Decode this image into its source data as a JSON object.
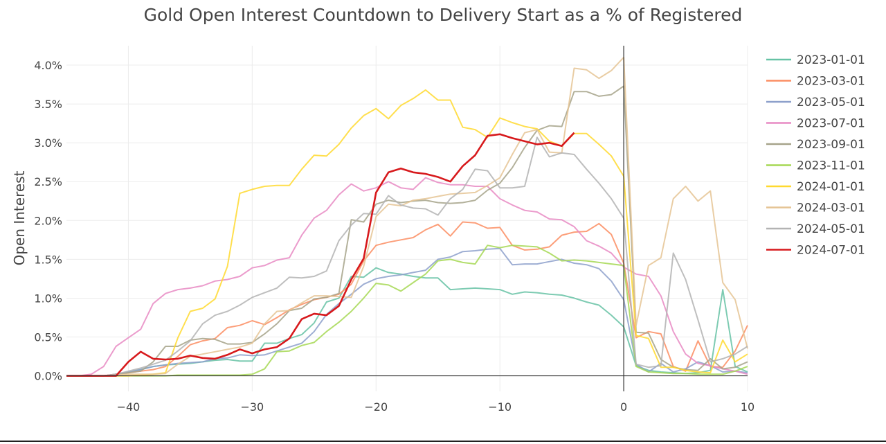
{
  "chart_data": {
    "type": "line",
    "title": "Gold Open Interest Countdown to Delivery Start as a % of Registered",
    "xlabel": "",
    "ylabel": "Open Interest",
    "xlim": [
      -45,
      10
    ],
    "ylim": [
      -0.002,
      0.0425
    ],
    "x_ticks": [
      -40,
      -30,
      -20,
      -10,
      0,
      10
    ],
    "x_tick_labels": [
      "−40",
      "−30",
      "−20",
      "−10",
      "0",
      "10"
    ],
    "y_ticks": [
      0,
      0.005,
      0.01,
      0.015,
      0.02,
      0.025,
      0.03,
      0.035,
      0.04
    ],
    "y_tick_labels": [
      "0.0%",
      "0.5%",
      "1.0%",
      "1.5%",
      "2.0%",
      "2.5%",
      "3.0%",
      "3.5%",
      "4.0%"
    ],
    "grid": true,
    "legend_position": "right",
    "series": [
      {
        "name": "2023-01-01",
        "color": "#66c2a5",
        "x": [
          -45,
          -44,
          -43,
          -42,
          -41,
          -40,
          -39,
          -38,
          -37,
          -36,
          -35,
          -34,
          -33,
          -32,
          -31,
          -30,
          -29,
          -28,
          -27,
          -26,
          -25,
          -24,
          -23,
          -22,
          -21,
          -20,
          -19,
          -18,
          -17,
          -16,
          -15,
          -14,
          -13,
          -12,
          -11,
          -10,
          -9,
          -8,
          -7,
          -6,
          -5,
          -4,
          -3,
          -2,
          -1,
          0,
          1,
          2,
          3,
          4,
          5,
          6,
          7,
          8,
          9,
          10
        ],
        "y": [
          0,
          0,
          0,
          0,
          0.0002,
          0.0005,
          0.0008,
          0.0012,
          0.0014,
          0.0015,
          0.0016,
          0.0018,
          0.002,
          0.0021,
          0.0019,
          0.0019,
          0.0042,
          0.0042,
          0.0048,
          0.0053,
          0.0068,
          0.0095,
          0.01,
          0.0128,
          0.0127,
          0.0139,
          0.0133,
          0.0131,
          0.0128,
          0.0126,
          0.0126,
          0.0111,
          0.0112,
          0.0113,
          0.0112,
          0.0111,
          0.0105,
          0.0108,
          0.0107,
          0.0105,
          0.0104,
          0.01,
          0.0095,
          0.0091,
          0.0078,
          0.0063,
          0.0013,
          0.0007,
          0.0005,
          0.0004,
          0.0003,
          0.0004,
          0.0007,
          0.0111,
          0.0012,
          0.0005
        ]
      },
      {
        "name": "2023-03-01",
        "color": "#fc8d62",
        "x": [
          -45,
          -44,
          -43,
          -42,
          -41,
          -40,
          -39,
          -38,
          -37,
          -36,
          -35,
          -34,
          -33,
          -32,
          -31,
          -30,
          -29,
          -28,
          -27,
          -26,
          -25,
          -24,
          -23,
          -22,
          -21,
          -20,
          -19,
          -18,
          -17,
          -16,
          -15,
          -14,
          -13,
          -12,
          -11,
          -10,
          -9,
          -8,
          -7,
          -6,
          -5,
          -4,
          -3,
          -2,
          -1,
          0,
          1,
          2,
          3,
          4,
          5,
          6,
          7,
          8,
          9,
          10
        ],
        "y": [
          0,
          0,
          0,
          0,
          0.0002,
          0.0004,
          0.0006,
          0.0008,
          0.0012,
          0.0025,
          0.004,
          0.0045,
          0.0048,
          0.0062,
          0.0065,
          0.0071,
          0.0066,
          0.0075,
          0.0085,
          0.0092,
          0.0098,
          0.0101,
          0.0105,
          0.0118,
          0.0148,
          0.0168,
          0.0172,
          0.0175,
          0.0178,
          0.0188,
          0.0195,
          0.018,
          0.0198,
          0.0197,
          0.019,
          0.0191,
          0.0168,
          0.0162,
          0.0163,
          0.0166,
          0.0181,
          0.0185,
          0.0186,
          0.0196,
          0.0182,
          0.0145,
          0.0049,
          0.0057,
          0.0054,
          0.0012,
          0.0006,
          0.0045,
          0.0012,
          0.0011,
          0.0032,
          0.0065
        ]
      },
      {
        "name": "2023-05-01",
        "color": "#8da0cb",
        "x": [
          -45,
          -44,
          -43,
          -42,
          -41,
          -40,
          -39,
          -38,
          -37,
          -36,
          -35,
          -34,
          -33,
          -32,
          -31,
          -30,
          -29,
          -28,
          -27,
          -26,
          -25,
          -24,
          -23,
          -22,
          -21,
          -20,
          -19,
          -18,
          -17,
          -16,
          -15,
          -14,
          -13,
          -12,
          -11,
          -10,
          -9,
          -8,
          -7,
          -6,
          -5,
          -4,
          -3,
          -2,
          -1,
          0,
          1,
          2,
          3,
          4,
          5,
          6,
          7,
          8,
          9,
          10
        ],
        "y": [
          0,
          0,
          0,
          0,
          0.0002,
          0.0005,
          0.0008,
          0.0012,
          0.0014,
          0.0016,
          0.0017,
          0.0018,
          0.0022,
          0.0023,
          0.0027,
          0.0026,
          0.0027,
          0.0032,
          0.0037,
          0.0042,
          0.0057,
          0.0079,
          0.0093,
          0.0105,
          0.0118,
          0.0125,
          0.0128,
          0.013,
          0.0133,
          0.0136,
          0.015,
          0.0153,
          0.016,
          0.0161,
          0.0163,
          0.0164,
          0.0143,
          0.0144,
          0.0144,
          0.0147,
          0.015,
          0.0145,
          0.0143,
          0.0138,
          0.0122,
          0.0098,
          0.0015,
          0.0005,
          0.0016,
          0.0005,
          0.0009,
          0.0018,
          0.0013,
          0.0005,
          0.0006,
          0.0004
        ]
      },
      {
        "name": "2023-07-01",
        "color": "#e78ac3",
        "x": [
          -45,
          -44,
          -43,
          -42,
          -41,
          -40,
          -39,
          -38,
          -37,
          -36,
          -35,
          -34,
          -33,
          -32,
          -31,
          -30,
          -29,
          -28,
          -27,
          -26,
          -25,
          -24,
          -23,
          -22,
          -21,
          -20,
          -19,
          -18,
          -17,
          -16,
          -15,
          -14,
          -13,
          -12,
          -11,
          -10,
          -9,
          -8,
          -7,
          -6,
          -5,
          -4,
          -3,
          -2,
          -1,
          0,
          1,
          2,
          3,
          4,
          5,
          6,
          7,
          8,
          9,
          10
        ],
        "y": [
          0,
          0,
          0.0002,
          0.0012,
          0.0038,
          0.0049,
          0.006,
          0.0093,
          0.0106,
          0.0111,
          0.0113,
          0.0116,
          0.0122,
          0.0124,
          0.0128,
          0.0139,
          0.0142,
          0.0149,
          0.0152,
          0.0181,
          0.0203,
          0.0213,
          0.0233,
          0.0247,
          0.0238,
          0.0242,
          0.025,
          0.0242,
          0.024,
          0.0255,
          0.0249,
          0.0246,
          0.0246,
          0.0244,
          0.0244,
          0.0228,
          0.022,
          0.0213,
          0.0211,
          0.0202,
          0.0201,
          0.0192,
          0.0174,
          0.0167,
          0.0158,
          0.014,
          0.0131,
          0.0128,
          0.0103,
          0.0057,
          0.0028,
          0.0016,
          0.0013,
          0.0009,
          0.0006,
          0.0002
        ]
      },
      {
        "name": "2023-09-01",
        "color": "#a6a38a",
        "x": [
          -45,
          -44,
          -43,
          -42,
          -41,
          -40,
          -39,
          -38,
          -37,
          -36,
          -35,
          -34,
          -33,
          -32,
          -31,
          -30,
          -29,
          -28,
          -27,
          -26,
          -25,
          -24,
          -23,
          -22,
          -21,
          -20,
          -19,
          -18,
          -17,
          -16,
          -15,
          -14,
          -13,
          -12,
          -11,
          -10,
          -9,
          -8,
          -7,
          -6,
          -5,
          -4,
          -3,
          -2,
          -1,
          0,
          1,
          2,
          3,
          4,
          5,
          6,
          7,
          8,
          9,
          10
        ],
        "y": [
          0,
          0,
          0,
          0,
          0.0002,
          0.0004,
          0.0006,
          0.0018,
          0.0038,
          0.0038,
          0.0046,
          0.0048,
          0.0047,
          0.0041,
          0.0041,
          0.0043,
          0.0054,
          0.0067,
          0.0084,
          0.0087,
          0.0099,
          0.0101,
          0.0106,
          0.0201,
          0.0198,
          0.0221,
          0.0226,
          0.0223,
          0.0225,
          0.0226,
          0.0223,
          0.0222,
          0.0223,
          0.0226,
          0.0239,
          0.0248,
          0.0268,
          0.0294,
          0.0316,
          0.0322,
          0.0321,
          0.0366,
          0.0366,
          0.036,
          0.0362,
          0.0373,
          0.0056,
          0.0055,
          0.0021,
          0.0011,
          0.0008,
          0.0007,
          0.0022,
          0.0009,
          0.0011,
          0.0018
        ]
      },
      {
        "name": "2023-11-01",
        "color": "#a6d854",
        "x": [
          -45,
          -44,
          -43,
          -42,
          -41,
          -40,
          -39,
          -38,
          -37,
          -36,
          -35,
          -34,
          -33,
          -32,
          -31,
          -30,
          -29,
          -28,
          -27,
          -26,
          -25,
          -24,
          -23,
          -22,
          -21,
          -20,
          -19,
          -18,
          -17,
          -16,
          -15,
          -14,
          -13,
          -12,
          -11,
          -10,
          -9,
          -8,
          -7,
          -6,
          -5,
          -4,
          -3,
          -2,
          -1,
          0,
          1,
          2,
          3,
          4,
          5,
          6,
          7,
          8,
          9,
          10
        ],
        "y": [
          0,
          0,
          0,
          0,
          0,
          0,
          0,
          0,
          0,
          0.0001,
          0.0001,
          0.0001,
          0.0001,
          0.0001,
          0.0001,
          0.0002,
          0.0009,
          0.0031,
          0.0032,
          0.0039,
          0.0043,
          0.0057,
          0.0069,
          0.0083,
          0.01,
          0.0119,
          0.0117,
          0.0109,
          0.012,
          0.0131,
          0.0148,
          0.015,
          0.0146,
          0.0144,
          0.0168,
          0.0165,
          0.0168,
          0.0167,
          0.0166,
          0.0158,
          0.0148,
          0.0149,
          0.0148,
          0.0146,
          0.0144,
          0.0142,
          0.0012,
          0.0005,
          0.0004,
          0.0003,
          0.0003,
          0.0002,
          0.0002,
          0.0002,
          0.0006,
          0.0012
        ]
      },
      {
        "name": "2024-01-01",
        "color": "#ffd92f",
        "x": [
          -45,
          -44,
          -43,
          -42,
          -41,
          -40,
          -39,
          -38,
          -37,
          -36,
          -35,
          -34,
          -33,
          -32,
          -31,
          -30,
          -29,
          -28,
          -27,
          -26,
          -25,
          -24,
          -23,
          -22,
          -21,
          -20,
          -19,
          -18,
          -17,
          -16,
          -15,
          -14,
          -13,
          -12,
          -11,
          -10,
          -9,
          -8,
          -7,
          -6,
          -5,
          -4,
          -3,
          -2,
          -1,
          0,
          1,
          2,
          3,
          4,
          5,
          6,
          7,
          8,
          9,
          10
        ],
        "y": [
          0,
          0,
          0,
          0,
          0,
          0,
          0.0001,
          0.0002,
          0.0004,
          0.0049,
          0.0083,
          0.0087,
          0.0099,
          0.0141,
          0.0235,
          0.024,
          0.0244,
          0.0245,
          0.0245,
          0.0266,
          0.0284,
          0.0283,
          0.0298,
          0.0319,
          0.0335,
          0.0344,
          0.0331,
          0.0348,
          0.0357,
          0.0368,
          0.0355,
          0.0355,
          0.032,
          0.0317,
          0.0307,
          0.0332,
          0.0326,
          0.0321,
          0.0318,
          0.0302,
          0.0296,
          0.0312,
          0.0312,
          0.0298,
          0.0283,
          0.0257,
          0.0052,
          0.0048,
          0.0011,
          0.0011,
          0.0007,
          0.0005,
          0.0004,
          0.0046,
          0.0018,
          0.0028
        ]
      },
      {
        "name": "2024-03-01",
        "color": "#e5c494",
        "x": [
          -45,
          -44,
          -43,
          -42,
          -41,
          -40,
          -39,
          -38,
          -37,
          -36,
          -35,
          -34,
          -33,
          -32,
          -31,
          -30,
          -29,
          -28,
          -27,
          -26,
          -25,
          -24,
          -23,
          -22,
          -21,
          -20,
          -19,
          -18,
          -17,
          -16,
          -15,
          -14,
          -13,
          -12,
          -11,
          -10,
          -9,
          -8,
          -7,
          -6,
          -5,
          -4,
          -3,
          -2,
          -1,
          0,
          1,
          2,
          3,
          4,
          5,
          6,
          7,
          8,
          9,
          10
        ],
        "y": [
          0,
          0,
          0,
          0,
          0.0001,
          0.0002,
          0.0002,
          0.0002,
          0.0003,
          0.0015,
          0.0025,
          0.0028,
          0.0031,
          0.0034,
          0.0037,
          0.0042,
          0.0067,
          0.0083,
          0.0084,
          0.0094,
          0.0103,
          0.0103,
          0.0102,
          0.0101,
          0.0141,
          0.0205,
          0.0221,
          0.0219,
          0.0226,
          0.0228,
          0.0231,
          0.0234,
          0.0235,
          0.0236,
          0.0245,
          0.0255,
          0.0285,
          0.0313,
          0.0317,
          0.0288,
          0.0287,
          0.0396,
          0.0394,
          0.0383,
          0.0393,
          0.041,
          0.0065,
          0.0142,
          0.0152,
          0.0228,
          0.0244,
          0.0225,
          0.0238,
          0.012,
          0.0098,
          0.0035
        ]
      },
      {
        "name": "2024-05-01",
        "color": "#b3b3b3",
        "x": [
          -45,
          -44,
          -43,
          -42,
          -41,
          -40,
          -39,
          -38,
          -37,
          -36,
          -35,
          -34,
          -33,
          -32,
          -31,
          -30,
          -29,
          -28,
          -27,
          -26,
          -25,
          -24,
          -23,
          -22,
          -21,
          -20,
          -19,
          -18,
          -17,
          -16,
          -15,
          -14,
          -13,
          -12,
          -11,
          -10,
          -9,
          -8,
          -7,
          -6,
          -5,
          -4,
          -3,
          -2,
          -1,
          0,
          1,
          2,
          3,
          4,
          5,
          6,
          7,
          8,
          9,
          10
        ],
        "y": [
          0,
          0,
          0,
          0,
          0.0002,
          0.0006,
          0.001,
          0.0015,
          0.002,
          0.0032,
          0.0045,
          0.0067,
          0.0078,
          0.0083,
          0.0091,
          0.0101,
          0.0107,
          0.0113,
          0.0127,
          0.0126,
          0.0128,
          0.0135,
          0.0174,
          0.0194,
          0.0209,
          0.0208,
          0.0232,
          0.022,
          0.0216,
          0.0215,
          0.0207,
          0.0228,
          0.024,
          0.0266,
          0.0264,
          0.0242,
          0.0242,
          0.0244,
          0.0307,
          0.0282,
          0.0287,
          0.0285,
          0.0266,
          0.0248,
          0.0228,
          0.0203,
          0.0015,
          0.0011,
          0.0013,
          0.0158,
          0.0124,
          0.0072,
          0.0018,
          0.0022,
          0.0028,
          0.0038
        ]
      },
      {
        "name": "2024-07-01",
        "color": "#d7191c",
        "x": [
          -45,
          -44,
          -43,
          -42,
          -41,
          -40,
          -39,
          -38,
          -37,
          -36,
          -35,
          -34,
          -33,
          -32,
          -31,
          -30,
          -29,
          -28,
          -27,
          -26,
          -25,
          -24,
          -23,
          -22,
          -21,
          -20,
          -19,
          -18,
          -17,
          -16,
          -15,
          -14,
          -13,
          -12,
          -11,
          -10,
          -9,
          -8,
          -7,
          -6,
          -5,
          -4
        ],
        "y": [
          0,
          0,
          0,
          0,
          0,
          0.0018,
          0.0031,
          0.0022,
          0.0021,
          0.0022,
          0.0026,
          0.0023,
          0.0022,
          0.0027,
          0.0034,
          0.0029,
          0.0034,
          0.0037,
          0.0048,
          0.0073,
          0.008,
          0.0078,
          0.009,
          0.0124,
          0.0151,
          0.0236,
          0.0262,
          0.0267,
          0.0262,
          0.026,
          0.0256,
          0.025,
          0.027,
          0.0284,
          0.0309,
          0.0311,
          0.0306,
          0.0302,
          0.0298,
          0.03,
          0.0296,
          0.0313
        ]
      }
    ]
  }
}
